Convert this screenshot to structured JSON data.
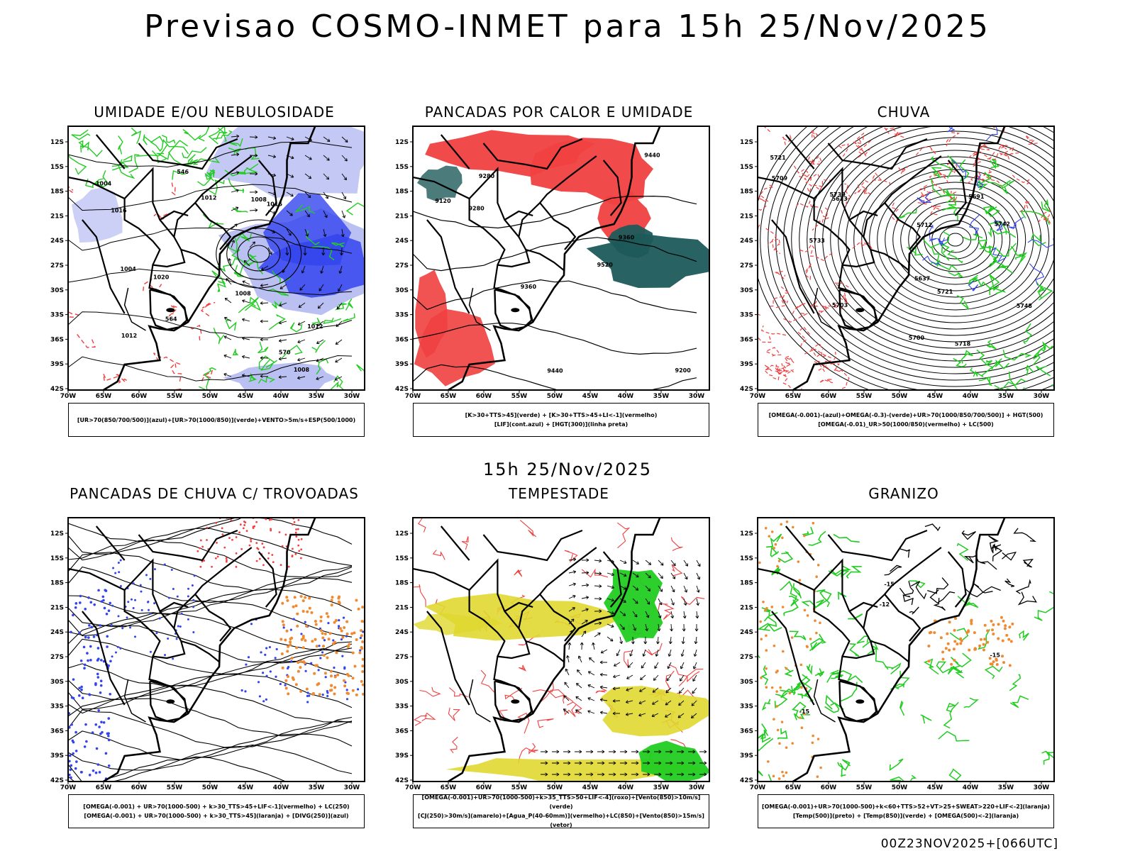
{
  "header": {
    "title": "Previsao COSMO-INMET  para 15h 25/Nov/2025"
  },
  "middle": {
    "title": "15h 25/Nov/2025"
  },
  "footer": {
    "stamp": "00Z23NOV2025+[066UTC]"
  },
  "axes": {
    "lat_labels": [
      "12S",
      "15S",
      "18S",
      "21S",
      "24S",
      "27S",
      "30S",
      "33S",
      "36S",
      "39S",
      "42S"
    ],
    "lon_labels": [
      "70W",
      "65W",
      "60W",
      "55W",
      "50W",
      "45W",
      "40W",
      "35W",
      "30W"
    ]
  },
  "colors": {
    "red": "#f04040",
    "green": "#22cc22",
    "blue": "#3344ee",
    "lavender": "#aab0f0",
    "teal": "#1e5a5a",
    "yellow": "#e0d830",
    "orange": "#f08a30",
    "black": "#000000"
  },
  "panels": [
    {
      "id": "umidade",
      "title": "UMIDADE E/OU NEBULOSIDADE",
      "legend": [
        "[UR>70(850/700/500)](azul)+[UR>70(1000/850)](verde)+VENTO>5m/s+ESP(500/1000)"
      ],
      "contour_labels": [
        "1008",
        "1004",
        "1008",
        "1004",
        "1012",
        "1016",
        "1012",
        "1020",
        "1016",
        "1012",
        "1008",
        "570",
        "564",
        "546"
      ]
    },
    {
      "id": "pancadas-calor",
      "title": "PANCADAS POR CALOR E UMIDADE",
      "legend": [
        "[K>30+TTS>45](verde) + [K>30+TTS>45+LI<-1](vermelho)",
        "[LIF](cont.azul) + [HGT(300)](linha preta)"
      ],
      "contour_labels": [
        "9520",
        "9440",
        "9440",
        "9280",
        "9360",
        "9360",
        "9280",
        "9200",
        "9120"
      ]
    },
    {
      "id": "chuva",
      "title": "CHUVA",
      "legend": [
        "[OMEGA(-0.001)-(azul)+OMEGA(-0.3)-(verde)+UR>70(1000/850/700/500)] + HGT(500)",
        "[OMEGA(-0.01)_UR>50(1000/850)(vermelho) + LC(500)"
      ],
      "contour_labels": [
        "5730",
        "5721",
        "5718",
        "5712",
        "5709",
        "5700",
        "5703",
        "5691",
        "5673",
        "5637",
        "5721",
        "5733",
        "5742",
        "5748"
      ]
    },
    {
      "id": "pancadas-trovoadas",
      "title": "PANCADAS DE CHUVA C/ TROVOADAS",
      "legend": [
        "[OMEGA(-0.001) + UR>70(1000-500) + k>30_TTS>45+LIF<-1](vermelho) + LC(250)",
        "[OMEGA(-0.001) + UR>70(1000-500) + k>30_TTS>45](laranja) + [DIVG(250)](azul)"
      ],
      "contour_labels": []
    },
    {
      "id": "tempestade",
      "title": "TEMPESTADE",
      "legend": [
        "[OMEGA(-0.001)+UR>70(1000-500)+k>35_TTS>50+LIF<-4](roxo)+[Vento(850)>10m/s](verde)",
        "[CJ(250)>30m/s](amarelo)+[Agua_P(40-60mm)](vermelho)+LC(850)+[Vento(850)>15m/s](vetor)"
      ],
      "contour_labels": []
    },
    {
      "id": "granizo",
      "title": "GRANIZO",
      "legend": [
        "[OMEGA(-0.001)+UR>70(1000-500)+k<60+TTS>52+VT>25+SWEAT>220+LIF<-2](laranja)",
        "[Temp(500)](preto) + [Temp(850)](verde) + [OMEGA(500)<-2](laranja)"
      ],
      "contour_labels": [
        "-12",
        "-15",
        "-15",
        "-15"
      ]
    }
  ]
}
